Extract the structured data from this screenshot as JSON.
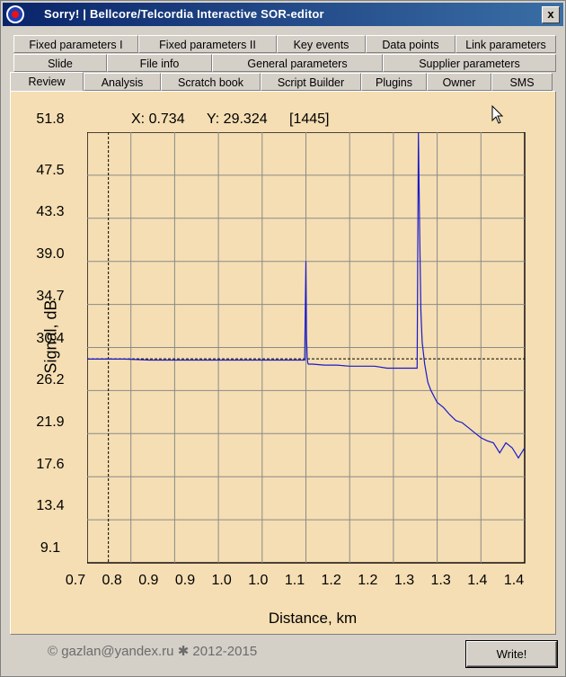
{
  "window": {
    "title": "Sorry!  |  Bellcore/Telcordia Interactive SOR-editor",
    "close_label": "x"
  },
  "tabs": {
    "row1": [
      "Fixed parameters I",
      "Fixed parameters II",
      "Key events",
      "Data points",
      "Link parameters"
    ],
    "row2": [
      "Slide",
      "File info",
      "General parameters",
      "Supplier parameters"
    ],
    "row3": [
      "Review",
      "Analysis",
      "Scratch book",
      "Script Builder",
      "Plugins",
      "Owner",
      "SMS"
    ],
    "active": "Review"
  },
  "readout": {
    "x": "X: 0.734",
    "y": "Y: 29.324",
    "index": "[1445]"
  },
  "chart_data": {
    "type": "line",
    "xlabel": "Distance, km",
    "ylabel": "Signal, dB",
    "x_ticks": [
      "0.7",
      "0.8",
      "0.9",
      "0.9",
      "1.0",
      "1.0",
      "1.1",
      "1.2",
      "1.2",
      "1.3",
      "1.3",
      "1.4",
      "1.4"
    ],
    "y_ticks": [
      "51.8",
      "47.5",
      "43.3",
      "39.0",
      "34.7",
      "30.4",
      "26.2",
      "21.9",
      "17.6",
      "13.4",
      "9.1"
    ],
    "xlim": [
      0.7,
      1.4
    ],
    "ylim": [
      9.1,
      51.8
    ],
    "grid": true,
    "cursor": {
      "x": 0.734,
      "y": 29.324
    },
    "colors": {
      "trace": "#1a1acc",
      "grid": "#8a8a8a",
      "background": "#f5deb3"
    },
    "series": [
      {
        "x": [
          0.7,
          0.72,
          0.74,
          0.76,
          0.8,
          0.85,
          0.9,
          0.95,
          1.0,
          1.03,
          1.048,
          1.05,
          1.051,
          1.052,
          1.053,
          1.054,
          1.06,
          1.08,
          1.1,
          1.12,
          1.14,
          1.16,
          1.18,
          1.2,
          1.22,
          1.225,
          1.228,
          1.23,
          1.232,
          1.234,
          1.236,
          1.24,
          1.245,
          1.25,
          1.26,
          1.27,
          1.28,
          1.29,
          1.3,
          1.31,
          1.32,
          1.33,
          1.34,
          1.35,
          1.36,
          1.37,
          1.38,
          1.39,
          1.4
        ],
        "y": [
          29.3,
          29.3,
          29.3,
          29.3,
          29.2,
          29.2,
          29.2,
          29.2,
          29.2,
          29.2,
          29.2,
          39.0,
          31.5,
          29.5,
          28.9,
          28.8,
          28.8,
          28.7,
          28.7,
          28.6,
          28.6,
          28.6,
          28.4,
          28.4,
          28.4,
          28.4,
          28.4,
          51.8,
          42.0,
          34.0,
          31.0,
          28.8,
          27.0,
          26.2,
          25.0,
          24.5,
          23.8,
          23.2,
          23.0,
          22.5,
          22.0,
          21.5,
          21.2,
          21.0,
          20.0,
          21.0,
          20.5,
          19.5,
          20.5
        ]
      }
    ]
  },
  "footer": {
    "copyright": "©  gazlan@yandex.ru  ✱  2012-2015"
  },
  "buttons": {
    "write": "Write!"
  }
}
